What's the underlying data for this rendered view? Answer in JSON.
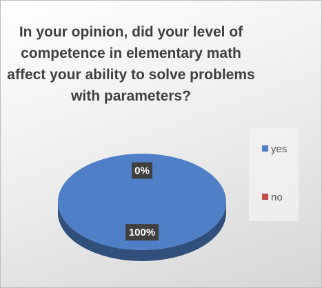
{
  "chart_data": {
    "type": "pie",
    "title": "In your opinion, did your level of competence in elementary math affect your ability to solve problems with parameters?",
    "categories": [
      "yes",
      "no"
    ],
    "values": [
      100,
      0
    ],
    "value_labels": [
      "100%",
      "0%"
    ],
    "colors": [
      "#4f7fc6",
      "#c0504d"
    ],
    "legend": "right"
  }
}
